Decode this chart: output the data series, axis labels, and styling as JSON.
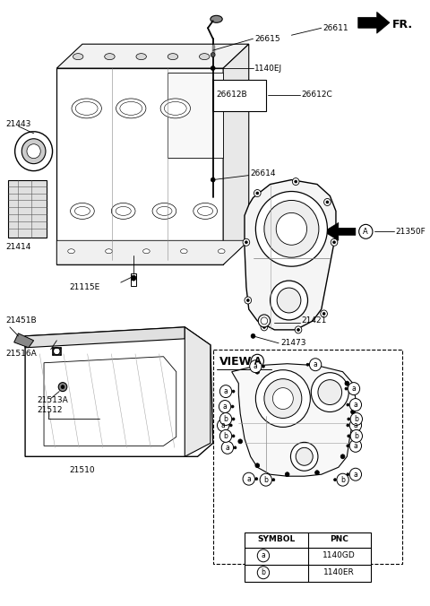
{
  "bg_color": "#ffffff",
  "fig_width": 4.8,
  "fig_height": 6.76,
  "dpi": 100,
  "labels": {
    "fr": "FR.",
    "26611": "26611",
    "26615": "26615",
    "1140EJ": "1140EJ",
    "26612B": "26612B",
    "26612C": "26612C",
    "26614": "26614",
    "21443": "21443",
    "21414": "21414",
    "21115E": "21115E",
    "21350F": "21350F",
    "21421": "21421",
    "21473": "21473",
    "21451B": "21451B",
    "21516A": "21516A",
    "21513A": "21513A",
    "21512": "21512",
    "21510": "21510",
    "view_a": "VIEW",
    "symbol": "SYMBOL",
    "pnc": "PNC",
    "pnc_a": "1140GD",
    "pnc_b": "1140ER"
  }
}
